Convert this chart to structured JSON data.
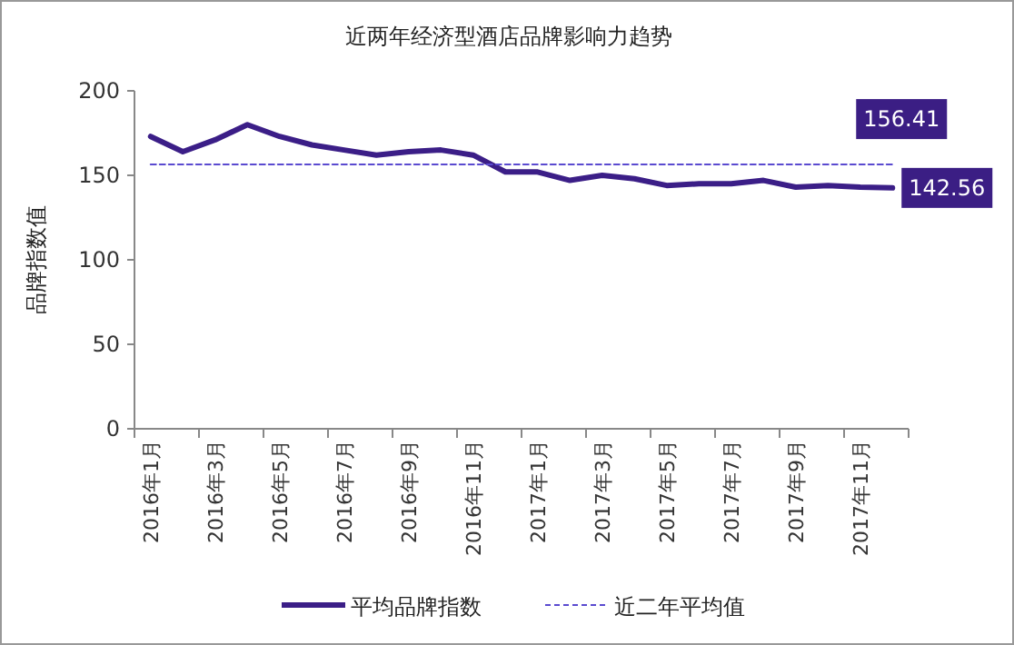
{
  "chart_data": {
    "type": "line",
    "title": "近两年经济型酒店品牌影响力趋势",
    "ylabel": "品牌指数值",
    "categories": [
      "2016年1月",
      null,
      "2016年3月",
      null,
      "2016年5月",
      null,
      "2016年7月",
      null,
      "2016年9月",
      null,
      "2016年11月",
      null,
      "2017年1月",
      null,
      "2017年3月",
      null,
      "2017年5月",
      null,
      "2017年7月",
      null,
      "2017年9月",
      null,
      "2017年11月",
      null
    ],
    "series": [
      {
        "name": "平均品牌指数",
        "color": "#3b1e87",
        "line_style": "solid",
        "values": [
          173,
          164,
          171,
          180,
          173,
          168,
          165,
          162,
          164,
          165,
          162,
          152,
          152,
          147,
          150,
          148,
          144,
          145,
          145,
          147,
          143,
          144,
          143,
          142.56
        ],
        "value_labels": [
          null,
          null,
          null,
          null,
          null,
          null,
          null,
          null,
          null,
          null,
          null,
          null,
          null,
          null,
          null,
          null,
          null,
          null,
          null,
          null,
          null,
          null,
          null,
          "142.56"
        ]
      },
      {
        "name": "近二年平均值",
        "color": "#5a4ad0",
        "line_style": "dashed",
        "values": [
          156.41,
          156.41,
          156.41,
          156.41,
          156.41,
          156.41,
          156.41,
          156.41,
          156.41,
          156.41,
          156.41,
          156.41,
          156.41,
          156.41,
          156.41,
          156.41,
          156.41,
          156.41,
          156.41,
          156.41,
          156.41,
          156.41,
          156.41,
          156.41
        ],
        "value_labels": [
          null,
          null,
          null,
          null,
          null,
          null,
          null,
          null,
          null,
          null,
          null,
          null,
          null,
          null,
          null,
          null,
          null,
          null,
          null,
          null,
          null,
          null,
          null,
          "156.41"
        ]
      }
    ],
    "ylim": [
      0,
      200
    ],
    "yticks": [
      0,
      50,
      100,
      150,
      200
    ],
    "grid": false,
    "legend": "bottom",
    "marker": "none"
  }
}
